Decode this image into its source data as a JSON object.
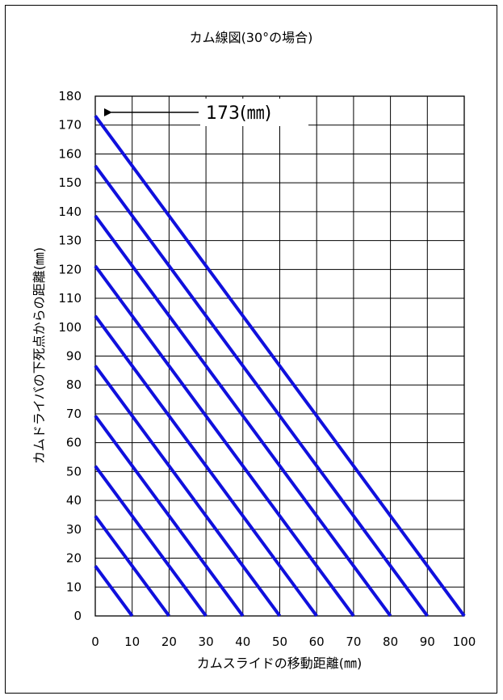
{
  "chart_data": {
    "type": "line",
    "title": "カム線図(30°の場合)",
    "xlabel": "カムスライドの移動距離(㎜)",
    "ylabel": "カムドライバの下死点からの距離(㎜)",
    "xlim": [
      0,
      100
    ],
    "ylim": [
      0,
      180
    ],
    "x_ticks": [
      "0",
      "10",
      "20",
      "30",
      "40",
      "50",
      "60",
      "70",
      "80",
      "90",
      "100"
    ],
    "y_ticks": [
      "0",
      "10",
      "20",
      "30",
      "40",
      "50",
      "60",
      "70",
      "80",
      "90",
      "100",
      "110",
      "120",
      "130",
      "140",
      "150",
      "160",
      "170",
      "180"
    ],
    "grid": true,
    "series": [
      {
        "x": [
          0,
          10
        ],
        "y": [
          17.3,
          0
        ]
      },
      {
        "x": [
          0,
          20
        ],
        "y": [
          34.6,
          0
        ]
      },
      {
        "x": [
          0,
          30
        ],
        "y": [
          51.9,
          0
        ]
      },
      {
        "x": [
          0,
          40
        ],
        "y": [
          69.3,
          0
        ]
      },
      {
        "x": [
          0,
          50
        ],
        "y": [
          86.6,
          0
        ]
      },
      {
        "x": [
          0,
          60
        ],
        "y": [
          103.9,
          0
        ]
      },
      {
        "x": [
          0,
          70
        ],
        "y": [
          121.2,
          0
        ]
      },
      {
        "x": [
          0,
          80
        ],
        "y": [
          138.6,
          0
        ]
      },
      {
        "x": [
          0,
          90
        ],
        "y": [
          155.9,
          0
        ]
      },
      {
        "x": [
          0,
          100
        ],
        "y": [
          173.2,
          0
        ]
      }
    ],
    "annotation": {
      "text": "173(㎜)",
      "x": 0,
      "y": 173
    },
    "colors": {
      "line": "#1010dd",
      "grid": "#000000"
    }
  }
}
